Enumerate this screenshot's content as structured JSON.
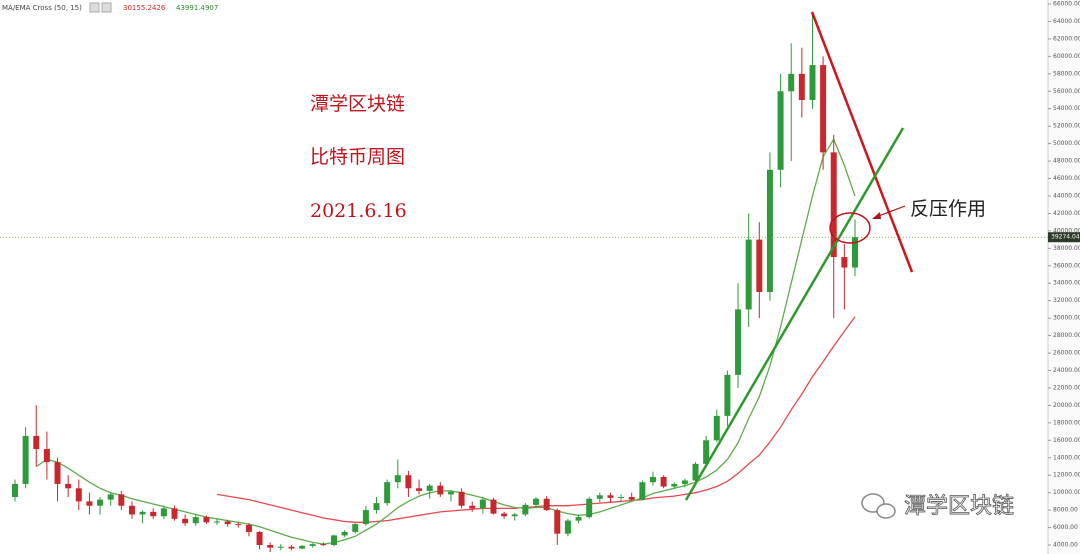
{
  "chart_data": {
    "type": "candlestick",
    "indicator_label": "MA/EMA Cross (50, 15)",
    "up_color": "#2f9a3a",
    "down_color": "#c8282d",
    "ohlc": [
      [
        9500,
        11500,
        9000,
        11000
      ],
      [
        11000,
        17500,
        10500,
        16500
      ],
      [
        16500,
        20000,
        13000,
        15000
      ],
      [
        15000,
        17000,
        11500,
        13500
      ],
      [
        13500,
        14000,
        9000,
        11000
      ],
      [
        11000,
        12000,
        9500,
        10500
      ],
      [
        10500,
        11500,
        8000,
        9000
      ],
      [
        9000,
        10000,
        7500,
        8500
      ],
      [
        8500,
        9500,
        7500,
        9200
      ],
      [
        9200,
        10000,
        8500,
        9800
      ],
      [
        9800,
        10200,
        8000,
        8500
      ],
      [
        8500,
        9000,
        7000,
        7500
      ],
      [
        7500,
        8000,
        6500,
        7800
      ],
      [
        7800,
        8200,
        7000,
        7300
      ],
      [
        7300,
        8500,
        7000,
        8200
      ],
      [
        8200,
        8500,
        6800,
        7000
      ],
      [
        7000,
        7500,
        6200,
        6500
      ],
      [
        6500,
        7500,
        6200,
        7200
      ],
      [
        7200,
        7400,
        6400,
        6600
      ],
      [
        6600,
        7000,
        6300,
        6700
      ],
      [
        6700,
        6900,
        6100,
        6400
      ],
      [
        6400,
        6600,
        6000,
        6300
      ],
      [
        6300,
        6500,
        5000,
        5500
      ],
      [
        5500,
        5600,
        3500,
        4000
      ],
      [
        4000,
        4300,
        3200,
        3700
      ],
      [
        3700,
        4100,
        3400,
        3800
      ],
      [
        3800,
        4000,
        3400,
        3600
      ],
      [
        3600,
        4000,
        3500,
        3900
      ],
      [
        3900,
        4200,
        3700,
        4100
      ],
      [
        4100,
        4300,
        3900,
        4000
      ],
      [
        4000,
        5200,
        3900,
        5100
      ],
      [
        5100,
        5700,
        4900,
        5500
      ],
      [
        5500,
        6500,
        5300,
        6400
      ],
      [
        6400,
        8500,
        6200,
        8000
      ],
      [
        8000,
        9500,
        7600,
        8800
      ],
      [
        8800,
        11500,
        8500,
        11200
      ],
      [
        11200,
        13800,
        10500,
        12000
      ],
      [
        12000,
        12500,
        9500,
        10500
      ],
      [
        10500,
        11500,
        9800,
        10200
      ],
      [
        10200,
        11000,
        9300,
        10800
      ],
      [
        10800,
        11200,
        9500,
        9800
      ],
      [
        9800,
        10300,
        9000,
        10100
      ],
      [
        10100,
        10500,
        8200,
        8500
      ],
      [
        8500,
        9000,
        7800,
        8200
      ],
      [
        8200,
        9500,
        7600,
        9200
      ],
      [
        9200,
        9400,
        7500,
        7600
      ],
      [
        7600,
        7800,
        7000,
        7300
      ],
      [
        7300,
        7700,
        6800,
        7500
      ],
      [
        7500,
        8800,
        7300,
        8600
      ],
      [
        8600,
        9500,
        8300,
        9300
      ],
      [
        9300,
        9600,
        7900,
        8000
      ],
      [
        8000,
        8200,
        4000,
        5300
      ],
      [
        5300,
        7000,
        5000,
        6800
      ],
      [
        6800,
        7500,
        6500,
        7200
      ],
      [
        7200,
        9500,
        7000,
        9300
      ],
      [
        9300,
        10000,
        8900,
        9700
      ],
      [
        9700,
        10000,
        8800,
        9400
      ],
      [
        9400,
        9800,
        9000,
        9500
      ],
      [
        9500,
        10000,
        9100,
        9200
      ],
      [
        9200,
        11400,
        9100,
        11200
      ],
      [
        11200,
        12400,
        10800,
        11800
      ],
      [
        11800,
        12000,
        10500,
        10700
      ],
      [
        10700,
        11200,
        10400,
        11000
      ],
      [
        11000,
        11600,
        10600,
        11400
      ],
      [
        11400,
        13500,
        11200,
        13300
      ],
      [
        13300,
        16500,
        13000,
        16000
      ],
      [
        16000,
        19500,
        15800,
        18800
      ],
      [
        18800,
        24000,
        17600,
        23500
      ],
      [
        23500,
        34000,
        22000,
        31000
      ],
      [
        31000,
        42000,
        29000,
        39000
      ],
      [
        39000,
        41000,
        30000,
        33000
      ],
      [
        33000,
        49000,
        32000,
        47000
      ],
      [
        47000,
        58000,
        45000,
        56000
      ],
      [
        56000,
        61500,
        48000,
        58000
      ],
      [
        58000,
        61000,
        53000,
        55000
      ],
      [
        55000,
        64800,
        54000,
        59000
      ],
      [
        59000,
        60000,
        47000,
        49000
      ],
      [
        49000,
        51000,
        30000,
        37000
      ],
      [
        37000,
        38500,
        31000,
        35800
      ],
      [
        35800,
        41300,
        34800,
        39274.04
      ]
    ],
    "series": [
      {
        "color": "#e8474b",
        "values": [
          null,
          null,
          null,
          null,
          null,
          null,
          null,
          null,
          null,
          null,
          null,
          null,
          null,
          null,
          null,
          null,
          null,
          null,
          null,
          9800,
          9600,
          9400,
          9200,
          8900,
          8600,
          8300,
          8000,
          7700,
          7400,
          7100,
          6900,
          6700,
          6600,
          6600,
          6700,
          6800,
          7000,
          7200,
          7400,
          7600,
          7800,
          7900,
          8000,
          8100,
          8200,
          8200,
          8200,
          8200,
          8300,
          8400,
          8500,
          8500,
          8500,
          8600,
          8700,
          8800,
          8900,
          9000,
          9100,
          9200,
          9400,
          9500,
          9600,
          9800,
          10000,
          10300,
          10700,
          11300,
          12200,
          13300,
          14300,
          15800,
          17500,
          19500,
          21300,
          23300,
          25000,
          26800,
          28500,
          30155.2426
        ]
      },
      {
        "color": "#5cad4a",
        "values": [
          null,
          null,
          13000,
          13800,
          13500,
          12800,
          12000,
          11200,
          10500,
          10000,
          9700,
          9300,
          9000,
          8700,
          8400,
          8100,
          7800,
          7500,
          7200,
          7000,
          6800,
          6600,
          6400,
          6100,
          5700,
          5300,
          4900,
          4600,
          4300,
          4100,
          4300,
          4600,
          5000,
          5700,
          6400,
          7300,
          8300,
          9000,
          9600,
          10000,
          10200,
          10200,
          10000,
          9700,
          9400,
          9000,
          8600,
          8300,
          8200,
          8300,
          8300,
          7900,
          7600,
          7400,
          7500,
          7800,
          8200,
          8600,
          9000,
          9400,
          9900,
          10200,
          10500,
          10800,
          11200,
          11800,
          12600,
          13800,
          15700,
          18500,
          21000,
          24500,
          29000,
          34000,
          39000,
          44000,
          48500,
          50500,
          47500,
          43991.4907
        ]
      }
    ],
    "last_price": 39274.04,
    "ylim": [
      2970,
      66460
    ],
    "yticks": [
      {
        "value": 4000,
        "label": "4000.00"
      },
      {
        "value": 6000,
        "label": "6000.00"
      },
      {
        "value": 8000,
        "label": "8000.00"
      },
      {
        "value": 10000,
        "label": "10000.00"
      },
      {
        "value": 12000,
        "label": "12000.00"
      },
      {
        "value": 14000,
        "label": "14000.00"
      },
      {
        "value": 16000,
        "label": "16000.00"
      },
      {
        "value": 18000,
        "label": "18000.00"
      },
      {
        "value": 20000,
        "label": "20000.00"
      },
      {
        "value": 22000,
        "label": "22000.00"
      },
      {
        "value": 24000,
        "label": "24000.00"
      },
      {
        "value": 26000,
        "label": "26000.00"
      },
      {
        "value": 28000,
        "label": "28000.00"
      },
      {
        "value": 30000,
        "label": "30000.00"
      },
      {
        "value": 32000,
        "label": "32000.00"
      },
      {
        "value": 34000,
        "label": "34000.00"
      },
      {
        "value": 36000,
        "label": "36000.00"
      },
      {
        "value": 38000,
        "label": "38000.00"
      },
      {
        "value": 40000,
        "label": "40000.00"
      },
      {
        "value": 42000,
        "label": "42000.00"
      },
      {
        "value": 44000,
        "label": "44000.00"
      },
      {
        "value": 46000,
        "label": "46000.00"
      },
      {
        "value": 48000,
        "label": "48000.00"
      },
      {
        "value": 50000,
        "label": "50000.00"
      },
      {
        "value": 52000,
        "label": "52000.00"
      },
      {
        "value": 54000,
        "label": "54000.00"
      },
      {
        "value": 56000,
        "label": "56000.00"
      },
      {
        "value": 58000,
        "label": "58000.00"
      },
      {
        "value": 60000,
        "label": "60000.00"
      },
      {
        "value": 62000,
        "label": "62000.00"
      },
      {
        "value": 64000,
        "label": "64000.00"
      },
      {
        "value": 66000,
        "label": "66000.00"
      }
    ],
    "notes": [
      "潭学区块链",
      "比特币周图",
      "2021.6.16"
    ],
    "callout": "反压作用",
    "watermark": "潭学区块链"
  }
}
